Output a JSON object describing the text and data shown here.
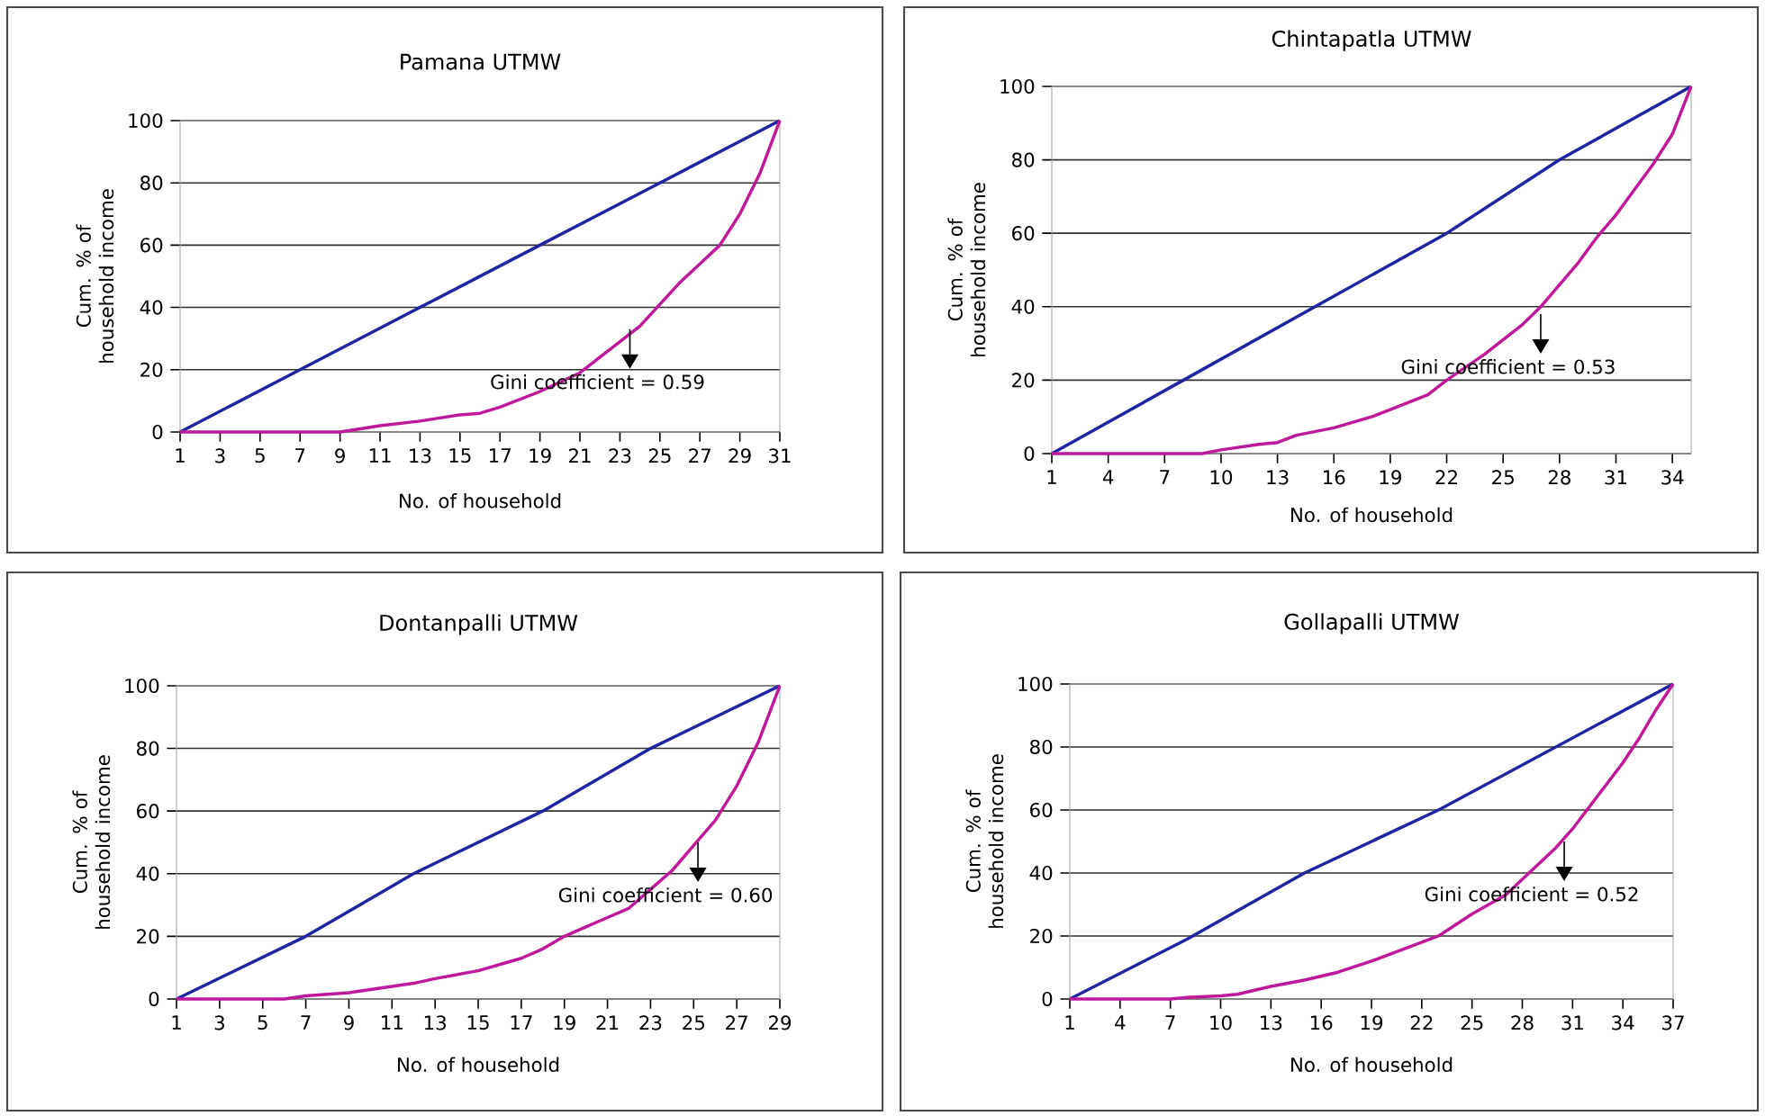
{
  "chart_data": [
    {
      "type": "line",
      "title": "Pamana UTMW",
      "xlabel": "No. of household",
      "ylabel": "Cum. % of household income",
      "xlim": [
        1,
        31
      ],
      "xticks": [
        1,
        3,
        5,
        7,
        9,
        11,
        13,
        15,
        17,
        19,
        21,
        23,
        25,
        27,
        29,
        31
      ],
      "ylim": [
        0,
        100
      ],
      "yticks": [
        0,
        20,
        40,
        60,
        80,
        100
      ],
      "grid": "y",
      "series": [
        {
          "color": "#1f24a0",
          "x": [
            1,
            7,
            13,
            19,
            25,
            31
          ],
          "values": [
            0,
            20,
            40,
            60,
            80,
            100
          ]
        },
        {
          "color": "#c0189a",
          "x": [
            1,
            9,
            10,
            11,
            13,
            15,
            16,
            17,
            19,
            21,
            22,
            23,
            24,
            25,
            26,
            27,
            28,
            29,
            30,
            31
          ],
          "values": [
            0,
            0,
            1,
            2,
            3.5,
            5.5,
            6,
            8,
            13,
            19,
            24,
            29,
            34,
            41,
            48,
            54,
            60,
            70,
            83,
            100
          ]
        }
      ],
      "annotations": [
        {
          "text": "Gini coefficient = 0.59",
          "x": 23.5,
          "y": 33
        }
      ]
    },
    {
      "type": "line",
      "title": "Chintapatla UTMW",
      "xlabel": "No. of household",
      "ylabel": "Cum. % of household income",
      "xlim": [
        1,
        35
      ],
      "xticks": [
        1,
        4,
        7,
        10,
        13,
        16,
        19,
        22,
        25,
        28,
        31,
        34
      ],
      "ylim": [
        0,
        100
      ],
      "yticks": [
        0,
        20,
        40,
        60,
        80,
        100
      ],
      "grid": "y",
      "series": [
        {
          "color": "#1f24a0",
          "x": [
            1,
            8,
            15,
            22,
            28,
            35
          ],
          "values": [
            0,
            20,
            40,
            60,
            80,
            100
          ]
        },
        {
          "color": "#c0189a",
          "x": [
            1,
            9,
            10,
            12,
            13,
            14,
            16,
            18,
            20,
            21,
            22,
            24,
            26,
            27,
            28,
            29,
            30,
            31,
            32,
            33,
            34,
            35
          ],
          "values": [
            0,
            0,
            1,
            2.5,
            3,
            5,
            7,
            10,
            14,
            16,
            20,
            27,
            35,
            40,
            46,
            52,
            59,
            65,
            72,
            79,
            87,
            100
          ]
        }
      ],
      "annotations": [
        {
          "text": "Gini coefficient = 0.53",
          "x": 27,
          "y": 38
        }
      ]
    },
    {
      "type": "line",
      "title": "Dontanpalli UTMW",
      "xlabel": "No. of household",
      "ylabel": "Cum. % of household income",
      "xlim": [
        1,
        29
      ],
      "xticks": [
        1,
        3,
        5,
        7,
        9,
        11,
        13,
        15,
        17,
        19,
        21,
        23,
        25,
        27,
        29
      ],
      "ylim": [
        0,
        100
      ],
      "yticks": [
        0,
        20,
        40,
        60,
        80,
        100
      ],
      "grid": "y",
      "series": [
        {
          "color": "#1f24a0",
          "x": [
            1,
            7,
            12,
            18,
            23,
            29
          ],
          "values": [
            0,
            20,
            40,
            60,
            80,
            100
          ]
        },
        {
          "color": "#c0189a",
          "x": [
            1,
            6,
            7,
            9,
            11,
            12,
            13,
            15,
            17,
            18,
            19,
            20,
            21,
            22,
            23,
            24,
            25,
            26,
            27,
            28,
            29
          ],
          "values": [
            0,
            0,
            1,
            2,
            4,
            5,
            6.5,
            9,
            13,
            16,
            20,
            23,
            26,
            29,
            35,
            41,
            49,
            57,
            68,
            82,
            100
          ]
        }
      ],
      "annotations": [
        {
          "text": "Gini coefficient = 0.60",
          "x": 25.2,
          "y": 50
        }
      ]
    },
    {
      "type": "line",
      "title": "Gollapalli UTMW",
      "xlabel": "No. of household",
      "ylabel": "Cum. % of household income",
      "xlim": [
        1,
        37
      ],
      "xticks": [
        1,
        4,
        7,
        10,
        13,
        16,
        19,
        22,
        25,
        28,
        31,
        34,
        37
      ],
      "ylim": [
        0,
        100
      ],
      "yticks": [
        0,
        20,
        40,
        60,
        80,
        100
      ],
      "grid": "y",
      "series": [
        {
          "color": "#1f24a0",
          "x": [
            1,
            8,
            15,
            23,
            30,
            37
          ],
          "values": [
            0,
            19,
            40,
            60,
            80,
            100
          ]
        },
        {
          "color": "#c0189a",
          "x": [
            1,
            7,
            8,
            10,
            11,
            13,
            15,
            17,
            19,
            21,
            23,
            25,
            27,
            28,
            29,
            30,
            31,
            32,
            33,
            34,
            35,
            36,
            37
          ],
          "values": [
            0,
            0,
            0.5,
            1,
            1.5,
            4,
            6,
            8.5,
            12,
            16,
            20,
            27,
            33,
            38,
            43,
            48,
            54,
            61,
            68,
            75,
            83,
            92,
            100
          ]
        }
      ],
      "annotations": [
        {
          "text": "Gini coefficient = 0.52",
          "x": 30.5,
          "y": 50
        }
      ]
    }
  ]
}
